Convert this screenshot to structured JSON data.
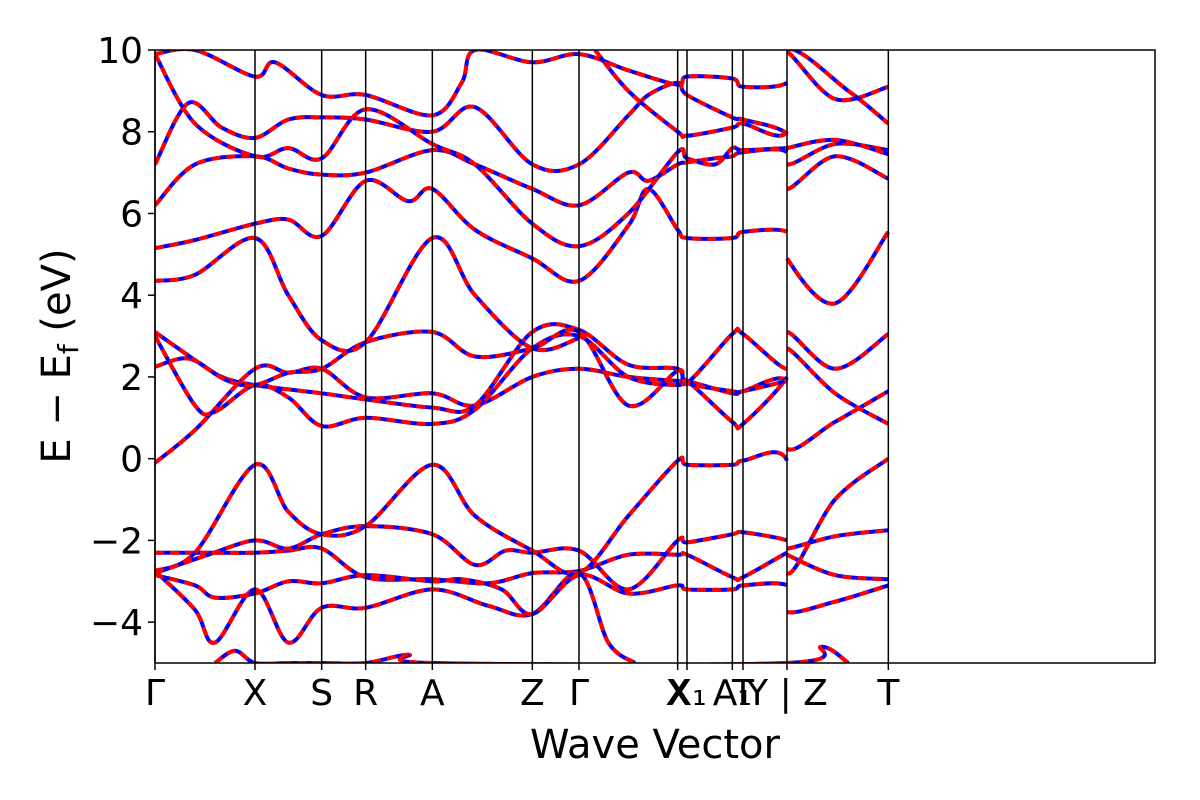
{
  "chart_data": {
    "type": "line",
    "title": "",
    "xlabel": "Wave Vector",
    "ylabel": "E − E_f (eV)",
    "ylabel_parts": {
      "main": "E − E",
      "sub": "f",
      "unit": " (eV)"
    },
    "ylim": [
      -5,
      10
    ],
    "yticks": [
      -4,
      -2,
      0,
      2,
      4,
      6,
      8,
      10
    ],
    "ytick_labels": [
      "−4",
      "−2",
      "0",
      "2",
      "4",
      "6",
      "8",
      "10"
    ],
    "xlim": [
      0,
      7.5
    ],
    "kpoints": [
      {
        "label": "Γ",
        "x": 0.0
      },
      {
        "label": "X",
        "x": 0.75
      },
      {
        "label": "S",
        "x": 1.25
      },
      {
        "label": "R",
        "x": 1.58
      },
      {
        "label": "A",
        "x": 2.08
      },
      {
        "label": "Z",
        "x": 2.83
      },
      {
        "label": "Γ",
        "x": 3.18
      },
      {
        "label": "X",
        "x": 3.92
      },
      {
        "label": "X₁",
        "x": 3.99
      },
      {
        "label": "A₁",
        "x": 4.33
      },
      {
        "label": "T",
        "x": 4.41
      },
      {
        "label": "Y | Z",
        "x": 4.74
      },
      {
        "label": "T",
        "x": 5.5
      }
    ],
    "band_colors": {
      "spin_down": "#0000ff",
      "spin_up": "#ff0000"
    },
    "series": [
      {
        "values": [
          [
            0,
            -0.1
          ],
          [
            0.3,
            0.7
          ],
          [
            0.75,
            2.2
          ],
          [
            1.0,
            2.1
          ],
          [
            1.25,
            2.2
          ],
          [
            1.58,
            1.5
          ],
          [
            2.08,
            1.6
          ],
          [
            2.4,
            1.3
          ],
          [
            2.83,
            2.0
          ],
          [
            3.18,
            2.2
          ],
          [
            3.55,
            2.0
          ],
          [
            3.92,
            1.9
          ],
          [
            3.99,
            1.9
          ],
          [
            4.33,
            1.6
          ],
          [
            4.41,
            1.65
          ],
          [
            4.74,
            1.9
          ],
          [
            4.74,
            0.25
          ],
          [
            5.1,
            0.9
          ],
          [
            5.5,
            1.65
          ]
        ]
      },
      {
        "values": [
          [
            0,
            3.0
          ],
          [
            0.3,
            1.3
          ],
          [
            0.45,
            1.15
          ],
          [
            0.75,
            1.8
          ],
          [
            1.0,
            1.5
          ],
          [
            1.25,
            0.8
          ],
          [
            1.58,
            1.0
          ],
          [
            2.08,
            0.85
          ],
          [
            2.4,
            1.2
          ],
          [
            2.83,
            2.7
          ],
          [
            3.18,
            3.0
          ],
          [
            3.55,
            2.0
          ],
          [
            3.92,
            1.8
          ],
          [
            3.99,
            1.9
          ],
          [
            4.33,
            0.9
          ],
          [
            4.41,
            0.85
          ],
          [
            4.74,
            2.0
          ],
          [
            4.74,
            2.7
          ],
          [
            5.1,
            1.6
          ],
          [
            5.5,
            0.85
          ]
        ]
      },
      {
        "values": [
          [
            0,
            2.25
          ],
          [
            0.25,
            2.45
          ],
          [
            0.5,
            2.0
          ],
          [
            0.75,
            1.8
          ],
          [
            1.25,
            1.6
          ],
          [
            1.58,
            1.45
          ],
          [
            2.08,
            1.25
          ],
          [
            2.4,
            1.3
          ],
          [
            2.83,
            3.1
          ],
          [
            3.18,
            3.15
          ],
          [
            3.55,
            2.3
          ],
          [
            3.92,
            2.2
          ],
          [
            3.99,
            1.85
          ],
          [
            4.33,
            3.05
          ],
          [
            4.41,
            3.05
          ],
          [
            4.74,
            2.2
          ],
          [
            4.74,
            3.1
          ],
          [
            5.1,
            2.2
          ],
          [
            5.5,
            3.05
          ]
        ]
      },
      {
        "values": [
          [
            0,
            3.1
          ],
          [
            0.35,
            2.3
          ],
          [
            0.55,
            1.9
          ],
          [
            0.75,
            1.8
          ],
          [
            1.0,
            2.1
          ],
          [
            1.25,
            2.2
          ],
          [
            1.58,
            2.85
          ],
          [
            2.08,
            3.1
          ],
          [
            2.4,
            2.5
          ],
          [
            2.83,
            2.7
          ],
          [
            3.18,
            3.1
          ],
          [
            3.55,
            1.3
          ],
          [
            3.92,
            2.15
          ],
          [
            3.99,
            1.85
          ],
          [
            4.33,
            1.65
          ],
          [
            4.41,
            1.65
          ],
          [
            4.74,
            1.9
          ]
        ]
      },
      {
        "values": [
          [
            0,
            4.35
          ],
          [
            0.3,
            4.5
          ],
          [
            0.75,
            5.4
          ],
          [
            1.0,
            4.0
          ],
          [
            1.25,
            2.9
          ],
          [
            1.58,
            2.85
          ],
          [
            2.08,
            5.4
          ],
          [
            2.4,
            4.0
          ],
          [
            2.83,
            2.7
          ],
          [
            3.18,
            2.95
          ]
        ]
      },
      {
        "values": [
          [
            0,
            5.15
          ],
          [
            0.3,
            5.35
          ],
          [
            0.75,
            5.75
          ],
          [
            1.0,
            5.85
          ],
          [
            1.25,
            5.45
          ],
          [
            1.58,
            6.8
          ],
          [
            1.9,
            6.3
          ],
          [
            2.08,
            6.6
          ],
          [
            2.4,
            5.6
          ],
          [
            2.83,
            4.9
          ],
          [
            3.18,
            4.35
          ],
          [
            3.55,
            5.7
          ],
          [
            3.7,
            6.6
          ],
          [
            3.92,
            5.6
          ],
          [
            3.99,
            5.4
          ],
          [
            4.33,
            5.4
          ],
          [
            4.41,
            5.55
          ],
          [
            4.74,
            5.55
          ],
          [
            4.74,
            4.9
          ],
          [
            5.1,
            3.8
          ],
          [
            5.5,
            5.55
          ]
        ]
      },
      {
        "values": [
          [
            0,
            6.2
          ],
          [
            0.3,
            7.2
          ],
          [
            0.75,
            7.4
          ],
          [
            1.0,
            7.1
          ],
          [
            1.25,
            6.95
          ],
          [
            1.58,
            7.0
          ],
          [
            2.08,
            7.55
          ],
          [
            2.4,
            7.2
          ],
          [
            2.83,
            6.6
          ],
          [
            3.18,
            6.2
          ],
          [
            3.55,
            7.0
          ],
          [
            3.7,
            6.8
          ],
          [
            3.92,
            7.2
          ],
          [
            3.99,
            7.25
          ],
          [
            4.2,
            7.35
          ],
          [
            4.33,
            7.4
          ],
          [
            4.41,
            7.5
          ],
          [
            4.74,
            7.5
          ],
          [
            4.74,
            6.6
          ],
          [
            5.1,
            7.4
          ],
          [
            5.5,
            6.85
          ]
        ]
      },
      {
        "values": [
          [
            0,
            7.2
          ],
          [
            0.25,
            8.7
          ],
          [
            0.5,
            8.1
          ],
          [
            0.75,
            7.85
          ],
          [
            1.0,
            8.3
          ],
          [
            1.25,
            8.35
          ],
          [
            1.58,
            8.3
          ],
          [
            2.08,
            8.0
          ],
          [
            2.4,
            8.6
          ],
          [
            2.83,
            7.2
          ],
          [
            3.18,
            7.2
          ],
          [
            3.55,
            8.4
          ],
          [
            3.7,
            8.9
          ],
          [
            3.92,
            9.2
          ],
          [
            3.99,
            8.9
          ],
          [
            4.33,
            8.35
          ],
          [
            4.41,
            8.3
          ],
          [
            4.74,
            7.95
          ],
          [
            4.74,
            7.2
          ],
          [
            5.1,
            7.7
          ],
          [
            5.5,
            7.55
          ]
        ]
      },
      {
        "values": [
          [
            0,
            9.9
          ],
          [
            0.3,
            8.2
          ],
          [
            0.75,
            7.4
          ],
          [
            1.0,
            7.6
          ],
          [
            1.25,
            7.35
          ],
          [
            1.58,
            8.55
          ],
          [
            2.08,
            7.7
          ],
          [
            2.4,
            7.2
          ],
          [
            2.83,
            5.75
          ],
          [
            3.18,
            5.2
          ],
          [
            3.55,
            6.0
          ],
          [
            3.92,
            7.5
          ],
          [
            3.99,
            7.35
          ],
          [
            4.2,
            7.2
          ],
          [
            4.33,
            7.6
          ],
          [
            4.41,
            7.55
          ],
          [
            4.74,
            7.6
          ],
          [
            4.74,
            7.6
          ],
          [
            5.1,
            7.8
          ],
          [
            5.5,
            7.45
          ]
        ]
      },
      {
        "values": [
          [
            0,
            9.9
          ],
          [
            0.3,
            10.0
          ],
          [
            0.75,
            9.35
          ],
          [
            0.9,
            9.7
          ],
          [
            1.25,
            8.9
          ],
          [
            1.58,
            8.9
          ],
          [
            2.08,
            8.4
          ],
          [
            2.3,
            9.2
          ],
          [
            2.4,
            10.0
          ],
          [
            2.83,
            9.7
          ],
          [
            3.18,
            9.9
          ],
          [
            3.55,
            9.5
          ],
          [
            3.92,
            9.15
          ],
          [
            3.99,
            9.35
          ],
          [
            4.33,
            9.3
          ],
          [
            4.41,
            9.1
          ],
          [
            4.74,
            9.2
          ],
          [
            4.74,
            9.95
          ],
          [
            5.1,
            8.8
          ],
          [
            5.5,
            9.1
          ]
        ]
      },
      {
        "values": [
          [
            3.3,
            10.0
          ],
          [
            3.55,
            9.0
          ],
          [
            3.92,
            8.0
          ],
          [
            3.99,
            7.9
          ],
          [
            4.33,
            8.1
          ],
          [
            4.41,
            8.2
          ],
          [
            4.74,
            8.0
          ],
          [
            4.74,
            10.0
          ],
          [
            5.2,
            9.0
          ],
          [
            5.5,
            8.2
          ]
        ]
      },
      {
        "values": [
          [
            0,
            -2.3
          ],
          [
            0.3,
            -2.3
          ],
          [
            0.75,
            -2.3
          ],
          [
            1.0,
            -2.25
          ],
          [
            1.25,
            -2.2
          ],
          [
            1.58,
            -2.9
          ],
          [
            2.08,
            -2.95
          ],
          [
            2.5,
            -3.05
          ],
          [
            2.83,
            -2.8
          ],
          [
            3.18,
            -2.75
          ],
          [
            3.55,
            -2.35
          ],
          [
            3.92,
            -2.35
          ],
          [
            3.99,
            -2.35
          ],
          [
            4.33,
            -2.9
          ],
          [
            4.41,
            -2.9
          ],
          [
            4.74,
            -2.3
          ],
          [
            4.74,
            -2.35
          ],
          [
            5.1,
            -2.85
          ],
          [
            5.5,
            -2.95
          ]
        ]
      },
      {
        "values": [
          [
            0,
            -2.8
          ],
          [
            0.4,
            -2.35
          ],
          [
            0.75,
            -2.0
          ],
          [
            1.0,
            -2.2
          ],
          [
            1.25,
            -1.85
          ],
          [
            1.58,
            -1.65
          ],
          [
            2.08,
            -1.85
          ],
          [
            2.4,
            -2.6
          ],
          [
            2.63,
            -2.25
          ],
          [
            2.83,
            -2.3
          ],
          [
            3.18,
            -2.25
          ],
          [
            3.55,
            -3.2
          ],
          [
            3.92,
            -2.0
          ],
          [
            3.99,
            -2.05
          ],
          [
            4.33,
            -1.85
          ],
          [
            4.41,
            -1.8
          ],
          [
            4.74,
            -2.0
          ],
          [
            4.74,
            -2.2
          ],
          [
            5.1,
            -1.9
          ],
          [
            5.5,
            -1.75
          ]
        ]
      },
      {
        "values": [
          [
            0,
            -2.75
          ],
          [
            0.3,
            -2.3
          ],
          [
            0.75,
            -0.15
          ],
          [
            1.0,
            -1.3
          ],
          [
            1.25,
            -1.85
          ],
          [
            1.58,
            -1.65
          ],
          [
            2.08,
            -0.15
          ],
          [
            2.4,
            -1.4
          ],
          [
            2.83,
            -2.25
          ],
          [
            3.18,
            -2.8
          ],
          [
            3.55,
            -1.4
          ],
          [
            3.92,
            -0.05
          ],
          [
            3.99,
            -0.15
          ],
          [
            4.33,
            -0.15
          ],
          [
            4.41,
            -0.05
          ],
          [
            4.74,
            -0.05
          ],
          [
            4.74,
            -2.8
          ],
          [
            5.1,
            -1.0
          ],
          [
            5.5,
            0.0
          ]
        ]
      },
      {
        "values": [
          [
            0,
            -2.75
          ],
          [
            0.3,
            -3.7
          ],
          [
            0.45,
            -4.5
          ],
          [
            0.75,
            -3.2
          ],
          [
            1.0,
            -4.5
          ],
          [
            1.25,
            -3.65
          ],
          [
            1.58,
            -3.65
          ],
          [
            2.08,
            -3.2
          ],
          [
            2.5,
            -3.6
          ],
          [
            2.83,
            -3.8
          ],
          [
            3.18,
            -2.8
          ],
          [
            3.4,
            -4.5
          ],
          [
            3.6,
            -5.0
          ]
        ]
      },
      {
        "values": [
          [
            0,
            -2.85
          ],
          [
            0.3,
            -3.1
          ],
          [
            0.45,
            -3.4
          ],
          [
            0.75,
            -3.3
          ],
          [
            1.0,
            -3.0
          ],
          [
            1.25,
            -3.05
          ],
          [
            1.58,
            -2.85
          ],
          [
            2.08,
            -3.0
          ],
          [
            2.3,
            -2.95
          ],
          [
            2.6,
            -3.2
          ],
          [
            2.83,
            -3.8
          ],
          [
            3.18,
            -2.85
          ],
          [
            3.55,
            -3.3
          ],
          [
            3.92,
            -3.1
          ],
          [
            3.99,
            -3.2
          ],
          [
            4.33,
            -3.2
          ],
          [
            4.41,
            -3.1
          ],
          [
            4.74,
            -3.1
          ],
          [
            4.74,
            -3.75
          ],
          [
            5.1,
            -3.5
          ],
          [
            5.5,
            -3.1
          ]
        ]
      },
      {
        "values": [
          [
            0.45,
            -5.0
          ],
          [
            0.6,
            -4.7
          ],
          [
            0.75,
            -5.0
          ],
          [
            1.0,
            -5.0
          ],
          [
            1.25,
            -5.0
          ],
          [
            1.58,
            -5.0
          ],
          [
            1.9,
            -4.8
          ],
          [
            2.08,
            -5.0
          ],
          [
            4.74,
            -5.0
          ],
          [
            5.0,
            -4.6
          ],
          [
            5.2,
            -5.0
          ]
        ]
      }
    ]
  }
}
